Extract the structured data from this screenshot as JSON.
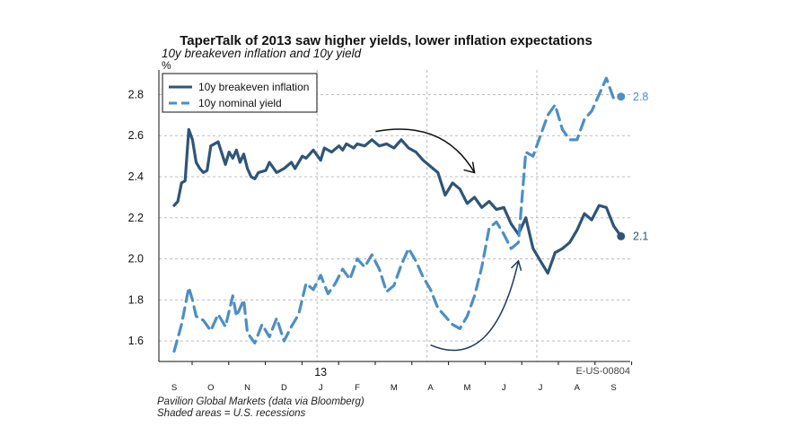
{
  "chart_data": {
    "type": "line",
    "title": "TaperTalk of 2013 saw higher yields, lower inflation expectations",
    "subtitle": "10y breakeven inflation and 10y yield",
    "ylabel": "%",
    "ylim": [
      1.5,
      2.92
    ],
    "yticks": [
      1.6,
      1.8,
      2.0,
      2.2,
      2.4,
      2.6,
      2.8
    ],
    "xlim": [
      0,
      12.6
    ],
    "xticks": [
      {
        "label": "S",
        "x": 0.0
      },
      {
        "label": "O",
        "x": 1.0
      },
      {
        "label": "N",
        "x": 2.0
      },
      {
        "label": "D",
        "x": 3.0
      },
      {
        "label": "J",
        "x": 4.0
      },
      {
        "label": "F",
        "x": 5.0
      },
      {
        "label": "M",
        "x": 6.0
      },
      {
        "label": "A",
        "x": 7.0
      },
      {
        "label": "M",
        "x": 8.0
      },
      {
        "label": "J",
        "x": 9.0
      },
      {
        "label": "J",
        "x": 10.0
      },
      {
        "label": "A",
        "x": 11.0
      },
      {
        "label": "S",
        "x": 12.0
      }
    ],
    "year_label": {
      "label": "13",
      "x": 4.0
    },
    "vgrid_major_x": [
      4.0,
      7.0,
      10.0
    ],
    "series": [
      {
        "name": "10y breakeven inflation",
        "color": "#2f5577",
        "style": "solid",
        "end_label": "2.1",
        "x": [
          0.0,
          0.1,
          0.2,
          0.3,
          0.4,
          0.5,
          0.6,
          0.7,
          0.8,
          0.9,
          1.0,
          1.2,
          1.4,
          1.5,
          1.6,
          1.7,
          1.8,
          1.9,
          2.0,
          2.1,
          2.2,
          2.3,
          2.5,
          2.6,
          2.8,
          3.0,
          3.2,
          3.3,
          3.5,
          3.6,
          3.8,
          4.0,
          4.1,
          4.3,
          4.5,
          4.6,
          4.7,
          4.9,
          5.0,
          5.2,
          5.4,
          5.6,
          5.8,
          6.0,
          6.2,
          6.4,
          6.6,
          6.8,
          7.0,
          7.2,
          7.4,
          7.6,
          7.8,
          8.0,
          8.2,
          8.4,
          8.6,
          8.8,
          9.0,
          9.2,
          9.4,
          9.6,
          9.8,
          10.0,
          10.2,
          10.4,
          10.6,
          10.8,
          11.0,
          11.2,
          11.4,
          11.6,
          11.8,
          12.0,
          12.2
        ],
        "y": [
          2.26,
          2.28,
          2.37,
          2.38,
          2.63,
          2.58,
          2.47,
          2.44,
          2.42,
          2.43,
          2.55,
          2.57,
          2.46,
          2.52,
          2.49,
          2.53,
          2.47,
          2.51,
          2.44,
          2.4,
          2.39,
          2.42,
          2.43,
          2.47,
          2.42,
          2.44,
          2.47,
          2.44,
          2.5,
          2.49,
          2.53,
          2.48,
          2.54,
          2.52,
          2.55,
          2.53,
          2.56,
          2.54,
          2.56,
          2.55,
          2.58,
          2.55,
          2.56,
          2.54,
          2.58,
          2.54,
          2.52,
          2.48,
          2.45,
          2.42,
          2.31,
          2.37,
          2.34,
          2.27,
          2.3,
          2.25,
          2.28,
          2.24,
          2.25,
          2.17,
          2.12,
          2.2,
          2.05,
          1.99,
          1.93,
          2.03,
          2.05,
          2.08,
          2.14,
          2.22,
          2.19,
          2.26,
          2.25,
          2.16,
          2.11
        ]
      },
      {
        "name": "10y nominal yield",
        "color": "#4d8fc4",
        "style": "dashed",
        "end_label": "2.8",
        "x": [
          0.0,
          0.2,
          0.4,
          0.5,
          0.6,
          0.8,
          1.0,
          1.2,
          1.4,
          1.6,
          1.7,
          1.9,
          2.0,
          2.2,
          2.4,
          2.6,
          2.8,
          3.0,
          3.2,
          3.4,
          3.6,
          3.8,
          4.0,
          4.2,
          4.4,
          4.6,
          4.8,
          5.0,
          5.2,
          5.4,
          5.6,
          5.8,
          6.0,
          6.2,
          6.4,
          6.6,
          6.8,
          7.0,
          7.2,
          7.4,
          7.6,
          7.8,
          8.0,
          8.2,
          8.4,
          8.6,
          8.8,
          9.0,
          9.2,
          9.4,
          9.6,
          9.8,
          10.0,
          10.2,
          10.4,
          10.6,
          10.8,
          11.0,
          11.2,
          11.4,
          11.6,
          11.8,
          12.0,
          12.2
        ],
        "y": [
          1.55,
          1.68,
          1.86,
          1.8,
          1.72,
          1.7,
          1.65,
          1.73,
          1.67,
          1.82,
          1.72,
          1.8,
          1.64,
          1.59,
          1.68,
          1.62,
          1.71,
          1.6,
          1.67,
          1.73,
          1.88,
          1.85,
          1.92,
          1.83,
          1.88,
          1.95,
          1.9,
          2.0,
          1.96,
          2.02,
          1.95,
          1.84,
          1.87,
          1.97,
          2.05,
          1.99,
          1.91,
          1.85,
          1.76,
          1.72,
          1.68,
          1.66,
          1.72,
          1.82,
          1.96,
          2.15,
          2.18,
          2.12,
          2.05,
          2.08,
          2.52,
          2.5,
          2.6,
          2.7,
          2.75,
          2.63,
          2.58,
          2.58,
          2.68,
          2.72,
          2.8,
          2.88,
          2.78,
          2.79
        ]
      }
    ],
    "annotations": [
      {
        "label": "down-arrow",
        "from": [
          5.5,
          2.62
        ],
        "to": [
          8.2,
          2.42
        ]
      },
      {
        "label": "up-arrow",
        "from": [
          7.0,
          1.58
        ],
        "to": [
          9.4,
          1.99
        ]
      }
    ],
    "legend": {
      "position": "top-left"
    }
  },
  "footer": {
    "source": "Pavilion Global Markets (data via Bloomberg)",
    "note": "Shaded areas = U.S. recessions",
    "code": "E-US-00804"
  }
}
